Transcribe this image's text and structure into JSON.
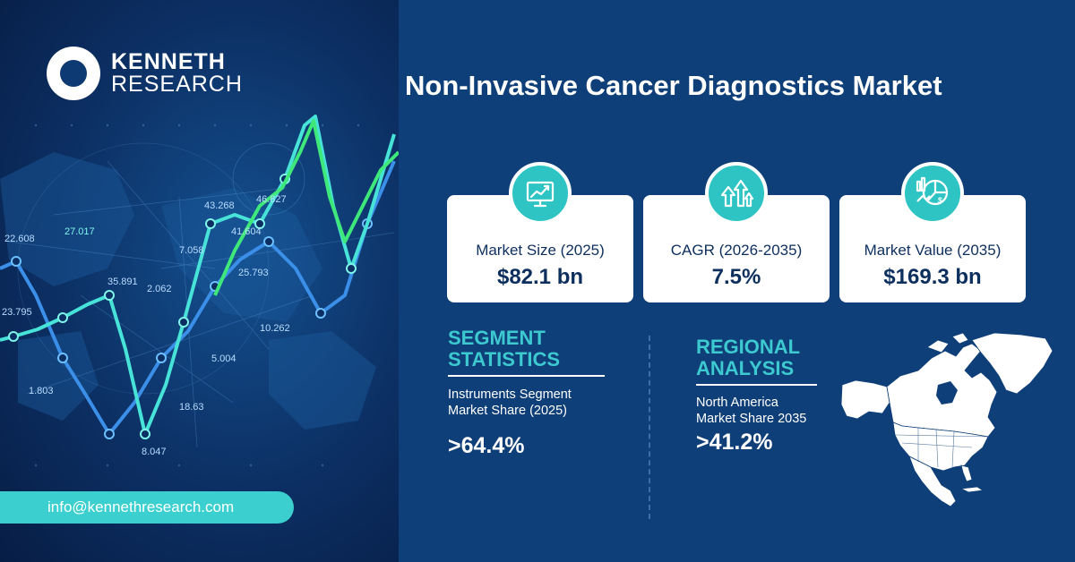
{
  "brand": {
    "line1": "KENNETH",
    "line2": "RESEARCH"
  },
  "contact": {
    "email": "info@kennethresearch.com"
  },
  "title": "Non-Invasive Cancer Diagnostics Market",
  "cards": [
    {
      "icon": "presentation-chart-icon",
      "label": "Market Size (2025)",
      "value": "$82.1 bn"
    },
    {
      "icon": "growth-arrows-icon",
      "label": "CAGR (2026-2035)",
      "value": "7.5%"
    },
    {
      "icon": "market-value-chart-icon",
      "label": "Market Value  (2035)",
      "value": "$169.3 bn"
    }
  ],
  "segment": {
    "title_line1": "SEGMENT",
    "title_line2": "STATISTICS",
    "text_line1": "Instruments  Segment",
    "text_line2": "Market Share (2025)",
    "value": ">64.4%"
  },
  "regional": {
    "title_line1": "REGIONAL",
    "title_line2": "ANALYSIS",
    "text_line1": "North America",
    "text_line2": "Market Share 2035",
    "value": ">41.2%"
  },
  "bg_labels": [
    "22.608",
    "27.017",
    "23.795",
    "35.891",
    "1.803",
    "2.062",
    "7.058",
    "43.268",
    "46.827",
    "41.604",
    "25.793",
    "5.004",
    "18.63",
    "8.047",
    "10.262"
  ],
  "colors": {
    "background": "#0f3f78",
    "accent": "#3cc9cf",
    "card_bg": "#ffffff",
    "card_text": "#0d2f5e",
    "icon_bg": "#2fc4c4"
  }
}
